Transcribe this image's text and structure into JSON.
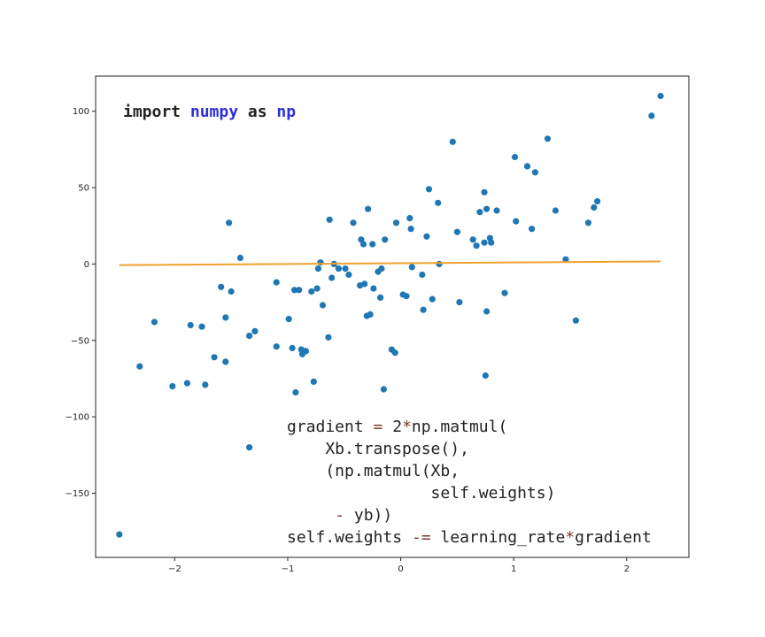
{
  "chart_data": {
    "type": "scatter",
    "title": "",
    "xlabel": "",
    "ylabel": "",
    "xlim": [
      -2.7,
      2.55
    ],
    "ylim": [
      -192,
      123
    ],
    "x_ticks": [
      -2,
      -1,
      0,
      1,
      2
    ],
    "y_ticks": [
      -150,
      -100,
      -50,
      0,
      50,
      100
    ],
    "x_tick_labels": [
      "−2",
      "−1",
      "0",
      "1",
      "2"
    ],
    "y_tick_labels": [
      "−150",
      "−100",
      "−50",
      "0",
      "50",
      "100"
    ],
    "grid": false,
    "legend": "none",
    "point_color": "#1f77b4",
    "line_color": "#f0a030",
    "points": [
      {
        "x": -2.49,
        "y": -177
      },
      {
        "x": -2.31,
        "y": -67
      },
      {
        "x": -2.18,
        "y": -38
      },
      {
        "x": -2.02,
        "y": -80
      },
      {
        "x": -1.89,
        "y": -78
      },
      {
        "x": -1.86,
        "y": -40
      },
      {
        "x": -1.76,
        "y": -41
      },
      {
        "x": -1.73,
        "y": -79
      },
      {
        "x": -1.65,
        "y": -61
      },
      {
        "x": -1.59,
        "y": -15
      },
      {
        "x": -1.55,
        "y": -64
      },
      {
        "x": -1.55,
        "y": -35
      },
      {
        "x": -1.52,
        "y": 27
      },
      {
        "x": -1.5,
        "y": -18
      },
      {
        "x": -1.42,
        "y": 4
      },
      {
        "x": -1.34,
        "y": -47
      },
      {
        "x": -1.34,
        "y": -120
      },
      {
        "x": -1.29,
        "y": -44
      },
      {
        "x": -1.1,
        "y": -12
      },
      {
        "x": -1.1,
        "y": -54
      },
      {
        "x": -0.99,
        "y": -36
      },
      {
        "x": -0.96,
        "y": -55
      },
      {
        "x": -0.94,
        "y": -17
      },
      {
        "x": -0.93,
        "y": -84
      },
      {
        "x": -0.9,
        "y": -17
      },
      {
        "x": -0.88,
        "y": -56
      },
      {
        "x": -0.87,
        "y": -59
      },
      {
        "x": -0.84,
        "y": -57
      },
      {
        "x": -0.79,
        "y": -18
      },
      {
        "x": -0.77,
        "y": -77
      },
      {
        "x": -0.74,
        "y": -16
      },
      {
        "x": -0.73,
        "y": -3
      },
      {
        "x": -0.71,
        "y": 1
      },
      {
        "x": -0.69,
        "y": -27
      },
      {
        "x": -0.64,
        "y": -48
      },
      {
        "x": -0.63,
        "y": 29
      },
      {
        "x": -0.61,
        "y": -9
      },
      {
        "x": -0.59,
        "y": 0
      },
      {
        "x": -0.55,
        "y": -3
      },
      {
        "x": -0.49,
        "y": -3
      },
      {
        "x": -0.46,
        "y": -7
      },
      {
        "x": -0.42,
        "y": 27
      },
      {
        "x": -0.36,
        "y": -14
      },
      {
        "x": -0.35,
        "y": 16
      },
      {
        "x": -0.33,
        "y": 13
      },
      {
        "x": -0.32,
        "y": -13
      },
      {
        "x": -0.3,
        "y": -34
      },
      {
        "x": -0.29,
        "y": 36
      },
      {
        "x": -0.27,
        "y": -33
      },
      {
        "x": -0.25,
        "y": 13
      },
      {
        "x": -0.24,
        "y": -16
      },
      {
        "x": -0.2,
        "y": -5
      },
      {
        "x": -0.18,
        "y": -22
      },
      {
        "x": -0.17,
        "y": -3
      },
      {
        "x": -0.15,
        "y": -82
      },
      {
        "x": -0.14,
        "y": 16
      },
      {
        "x": -0.08,
        "y": -56
      },
      {
        "x": -0.05,
        "y": -58
      },
      {
        "x": -0.04,
        "y": 27
      },
      {
        "x": 0.02,
        "y": -20
      },
      {
        "x": 0.05,
        "y": -21
      },
      {
        "x": 0.08,
        "y": 30
      },
      {
        "x": 0.09,
        "y": 23
      },
      {
        "x": 0.1,
        "y": -2
      },
      {
        "x": 0.19,
        "y": -7
      },
      {
        "x": 0.2,
        "y": -30
      },
      {
        "x": 0.23,
        "y": 18
      },
      {
        "x": 0.25,
        "y": 49
      },
      {
        "x": 0.28,
        "y": -23
      },
      {
        "x": 0.33,
        "y": 40
      },
      {
        "x": 0.34,
        "y": 0
      },
      {
        "x": 0.46,
        "y": 80
      },
      {
        "x": 0.5,
        "y": 21
      },
      {
        "x": 0.52,
        "y": -25
      },
      {
        "x": 0.64,
        "y": 16
      },
      {
        "x": 0.67,
        "y": 12
      },
      {
        "x": 0.7,
        "y": 34
      },
      {
        "x": 0.74,
        "y": 14
      },
      {
        "x": 0.74,
        "y": 47
      },
      {
        "x": 0.75,
        "y": -73
      },
      {
        "x": 0.76,
        "y": -31
      },
      {
        "x": 0.76,
        "y": 36
      },
      {
        "x": 0.79,
        "y": 17
      },
      {
        "x": 0.8,
        "y": 14
      },
      {
        "x": 0.85,
        "y": 35
      },
      {
        "x": 0.92,
        "y": -19
      },
      {
        "x": 1.01,
        "y": 70
      },
      {
        "x": 1.02,
        "y": 28
      },
      {
        "x": 1.12,
        "y": 64
      },
      {
        "x": 1.16,
        "y": 23
      },
      {
        "x": 1.19,
        "y": 60
      },
      {
        "x": 1.3,
        "y": 82
      },
      {
        "x": 1.37,
        "y": 35
      },
      {
        "x": 1.46,
        "y": 3
      },
      {
        "x": 1.55,
        "y": -37
      },
      {
        "x": 1.66,
        "y": 27
      },
      {
        "x": 1.71,
        "y": 37
      },
      {
        "x": 1.74,
        "y": 41
      },
      {
        "x": 2.22,
        "y": 97
      },
      {
        "x": 2.3,
        "y": 110
      }
    ],
    "fit_line": {
      "x": [
        -2.49,
        2.3
      ],
      "y": [
        -0.7,
        1.7
      ]
    }
  },
  "annotations": {
    "import_line": [
      {
        "text": "import",
        "color": "#222222",
        "bold": true
      },
      {
        "text": " ",
        "color": "#222222",
        "bold": true
      },
      {
        "text": "numpy",
        "color": "#2d2fd6",
        "bold": true
      },
      {
        "text": " as ",
        "color": "#222222",
        "bold": true
      },
      {
        "text": "np",
        "color": "#2d2fd6",
        "bold": true
      }
    ],
    "code_lines": [
      [
        {
          "text": "gradient ",
          "color": "#222222"
        },
        {
          "text": "=",
          "color": "#7a3a2a"
        },
        {
          "text": " 2",
          "color": "#222222"
        },
        {
          "text": "*",
          "color": "#7a3a2a"
        },
        {
          "text": "np.matmul(",
          "color": "#222222"
        }
      ],
      [
        {
          "text": "    Xb.transpose(),",
          "color": "#222222"
        }
      ],
      [
        {
          "text": "    (np.matmul(Xb,",
          "color": "#222222"
        }
      ],
      [
        {
          "text": "               self.weights)",
          "color": "#222222"
        }
      ],
      [
        {
          "text": "     ",
          "color": "#222222"
        },
        {
          "text": "-",
          "color": "#7a3a2a"
        },
        {
          "text": " yb))",
          "color": "#222222"
        }
      ],
      [
        {
          "text": "self.weights ",
          "color": "#222222"
        },
        {
          "text": "-=",
          "color": "#7a3a2a"
        },
        {
          "text": " learning_rate",
          "color": "#222222"
        },
        {
          "text": "*",
          "color": "#7a3a2a"
        },
        {
          "text": "gradient",
          "color": "#222222"
        }
      ]
    ]
  }
}
